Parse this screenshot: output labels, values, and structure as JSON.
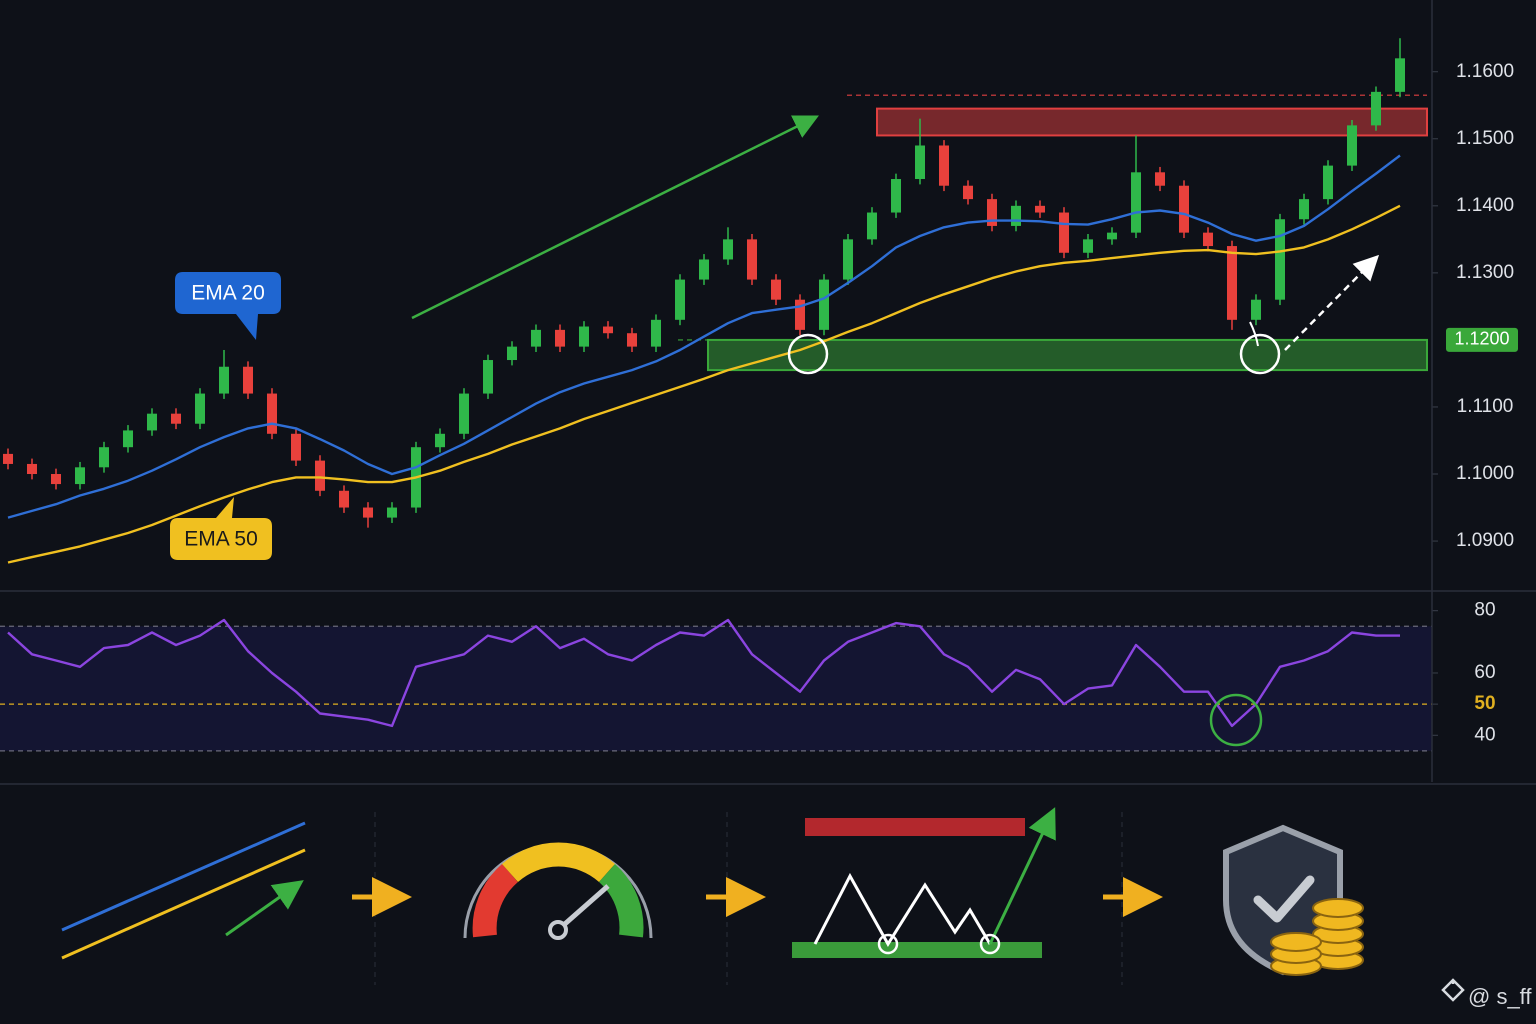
{
  "chart_data": [
    {
      "type": "candlestick",
      "ylim": [
        1.0827,
        1.1707
      ],
      "yticks": [
        {
          "value": 1.16,
          "label": "1.1600"
        },
        {
          "value": 1.15,
          "label": "1.1500"
        },
        {
          "value": 1.14,
          "label": "1.1400"
        },
        {
          "value": 1.13,
          "label": "1.1300"
        },
        {
          "value": 1.11,
          "label": "1.1100"
        },
        {
          "value": 1.1,
          "label": "1.1000"
        },
        {
          "value": 1.09,
          "label": "1.0900"
        }
      ],
      "up_color": "#2fb84a",
      "down_color": "#e8413c",
      "open": [
        1.103,
        1.1015,
        1.1,
        1.0985,
        1.101,
        1.104,
        1.1065,
        1.109,
        1.1075,
        1.112,
        1.116,
        1.112,
        1.106,
        1.102,
        1.0975,
        1.095,
        1.0935,
        1.095,
        1.104,
        1.106,
        1.112,
        1.117,
        1.119,
        1.1215,
        1.119,
        1.122,
        1.121,
        1.119,
        1.123,
        1.129,
        1.132,
        1.135,
        1.129,
        1.126,
        1.1215,
        1.129,
        1.135,
        1.139,
        1.144,
        1.149,
        1.143,
        1.141,
        1.137,
        1.14,
        1.139,
        1.133,
        1.135,
        1.136,
        1.145,
        1.143,
        1.136,
        1.134,
        1.123,
        1.126,
        1.138,
        1.141,
        1.146,
        1.152,
        1.157
      ],
      "high": [
        1.1038,
        1.1023,
        1.1008,
        1.1018,
        1.1048,
        1.1073,
        1.1098,
        1.1098,
        1.1128,
        1.1185,
        1.1168,
        1.1128,
        1.1068,
        1.1028,
        1.0983,
        1.0958,
        1.0958,
        1.1048,
        1.1068,
        1.1128,
        1.1178,
        1.1198,
        1.1223,
        1.1223,
        1.1228,
        1.1228,
        1.1218,
        1.1238,
        1.1298,
        1.1328,
        1.1368,
        1.1358,
        1.1298,
        1.1268,
        1.1298,
        1.1358,
        1.1398,
        1.1448,
        1.153,
        1.1498,
        1.1438,
        1.1418,
        1.1408,
        1.1408,
        1.1398,
        1.1358,
        1.1368,
        1.1505,
        1.1458,
        1.1438,
        1.1368,
        1.1348,
        1.1268,
        1.1388,
        1.1418,
        1.1468,
        1.1528,
        1.1578,
        1.165
      ],
      "low": [
        1.1007,
        1.0992,
        1.0977,
        1.0977,
        1.1002,
        1.1032,
        1.1057,
        1.1067,
        1.1067,
        1.1112,
        1.1112,
        1.1052,
        1.1012,
        1.0967,
        1.0942,
        1.092,
        1.0927,
        1.0942,
        1.1032,
        1.1052,
        1.1112,
        1.1162,
        1.1182,
        1.1182,
        1.1182,
        1.1202,
        1.1182,
        1.1182,
        1.1222,
        1.1282,
        1.1312,
        1.1282,
        1.1252,
        1.1207,
        1.1207,
        1.1282,
        1.1342,
        1.1382,
        1.1432,
        1.1422,
        1.1402,
        1.1362,
        1.1362,
        1.1382,
        1.1322,
        1.1322,
        1.1342,
        1.1352,
        1.1422,
        1.1352,
        1.1332,
        1.1215,
        1.1222,
        1.1252,
        1.1372,
        1.1402,
        1.1452,
        1.1512,
        1.1562
      ],
      "close": [
        1.1015,
        1.1,
        1.0985,
        1.101,
        1.104,
        1.1065,
        1.109,
        1.1075,
        1.112,
        1.116,
        1.112,
        1.106,
        1.102,
        1.0975,
        1.095,
        1.0935,
        1.095,
        1.104,
        1.106,
        1.112,
        1.117,
        1.119,
        1.1215,
        1.119,
        1.122,
        1.121,
        1.119,
        1.123,
        1.129,
        1.132,
        1.135,
        1.129,
        1.126,
        1.1215,
        1.129,
        1.135,
        1.139,
        1.144,
        1.149,
        1.143,
        1.141,
        1.137,
        1.14,
        1.139,
        1.133,
        1.135,
        1.136,
        1.145,
        1.143,
        1.136,
        1.134,
        1.123,
        1.126,
        1.138,
        1.141,
        1.146,
        1.152,
        1.157,
        1.162
      ],
      "series": [
        {
          "name": "EMA 20",
          "color": "#2f6fd6",
          "values": [
            1.0935,
            1.0945,
            1.0955,
            1.0968,
            1.0978,
            1.099,
            1.1005,
            1.1022,
            1.104,
            1.1055,
            1.1068,
            1.1075,
            1.1068,
            1.1052,
            1.1035,
            1.1015,
            1.1,
            1.101,
            1.1028,
            1.1045,
            1.1065,
            1.1085,
            1.1105,
            1.1122,
            1.1135,
            1.1145,
            1.1155,
            1.1168,
            1.1185,
            1.1205,
            1.1225,
            1.124,
            1.1245,
            1.125,
            1.1262,
            1.1285,
            1.131,
            1.1338,
            1.1355,
            1.1368,
            1.1375,
            1.1378,
            1.1378,
            1.1377,
            1.1373,
            1.1372,
            1.138,
            1.139,
            1.1393,
            1.1388,
            1.1375,
            1.1358,
            1.1348,
            1.1355,
            1.137,
            1.1395,
            1.1422,
            1.1448,
            1.1475
          ]
        },
        {
          "name": "EMA 50",
          "color": "#f0c020",
          "values": [
            1.0868,
            1.0876,
            1.0884,
            1.0892,
            1.0902,
            1.0912,
            1.0924,
            1.0938,
            1.0952,
            1.0965,
            1.0977,
            1.0988,
            1.0995,
            1.0995,
            1.0992,
            1.0988,
            1.0988,
            1.0995,
            1.1005,
            1.1018,
            1.103,
            1.1044,
            1.1056,
            1.1068,
            1.1082,
            1.1094,
            1.1106,
            1.1118,
            1.113,
            1.1142,
            1.1155,
            1.1165,
            1.1175,
            1.1185,
            1.1198,
            1.1212,
            1.1225,
            1.124,
            1.1255,
            1.1268,
            1.128,
            1.1292,
            1.1302,
            1.131,
            1.1315,
            1.1318,
            1.1322,
            1.1326,
            1.133,
            1.1333,
            1.1334,
            1.133,
            1.1328,
            1.1332,
            1.1338,
            1.135,
            1.1365,
            1.1382,
            1.14
          ]
        }
      ],
      "zones": [
        {
          "low": 1.1155,
          "high": 1.12,
          "dash": 1.12,
          "color": "#3aa83a",
          "label": "1.1200"
        },
        {
          "low": 1.1505,
          "high": 1.1545,
          "dash": 1.1565,
          "color": "#e04040"
        }
      ]
    },
    {
      "type": "line",
      "ylim": [
        25,
        86
      ],
      "yticks": [
        80,
        60,
        50,
        40
      ],
      "levels": [
        {
          "value": 75,
          "color": "#6a6a7a"
        },
        {
          "value": 50,
          "color": "#e0b020"
        },
        {
          "value": 35,
          "color": "#6a6a7a"
        }
      ],
      "series": [
        {
          "color": "#8b45e0",
          "values": [
            73,
            66,
            64,
            62,
            68,
            69,
            73,
            69,
            72,
            77,
            67,
            60,
            54,
            47,
            46,
            45,
            43,
            62,
            64,
            66,
            72,
            70,
            75,
            68,
            71,
            66,
            64,
            69,
            73,
            72,
            77,
            66,
            60,
            54,
            64,
            70,
            73,
            76,
            75,
            66,
            62,
            54,
            61,
            58,
            50,
            55,
            56,
            69,
            62,
            54,
            54,
            43,
            50,
            62,
            64,
            67,
            73,
            72,
            72
          ]
        }
      ]
    }
  ],
  "watermark": "@ s_ff"
}
